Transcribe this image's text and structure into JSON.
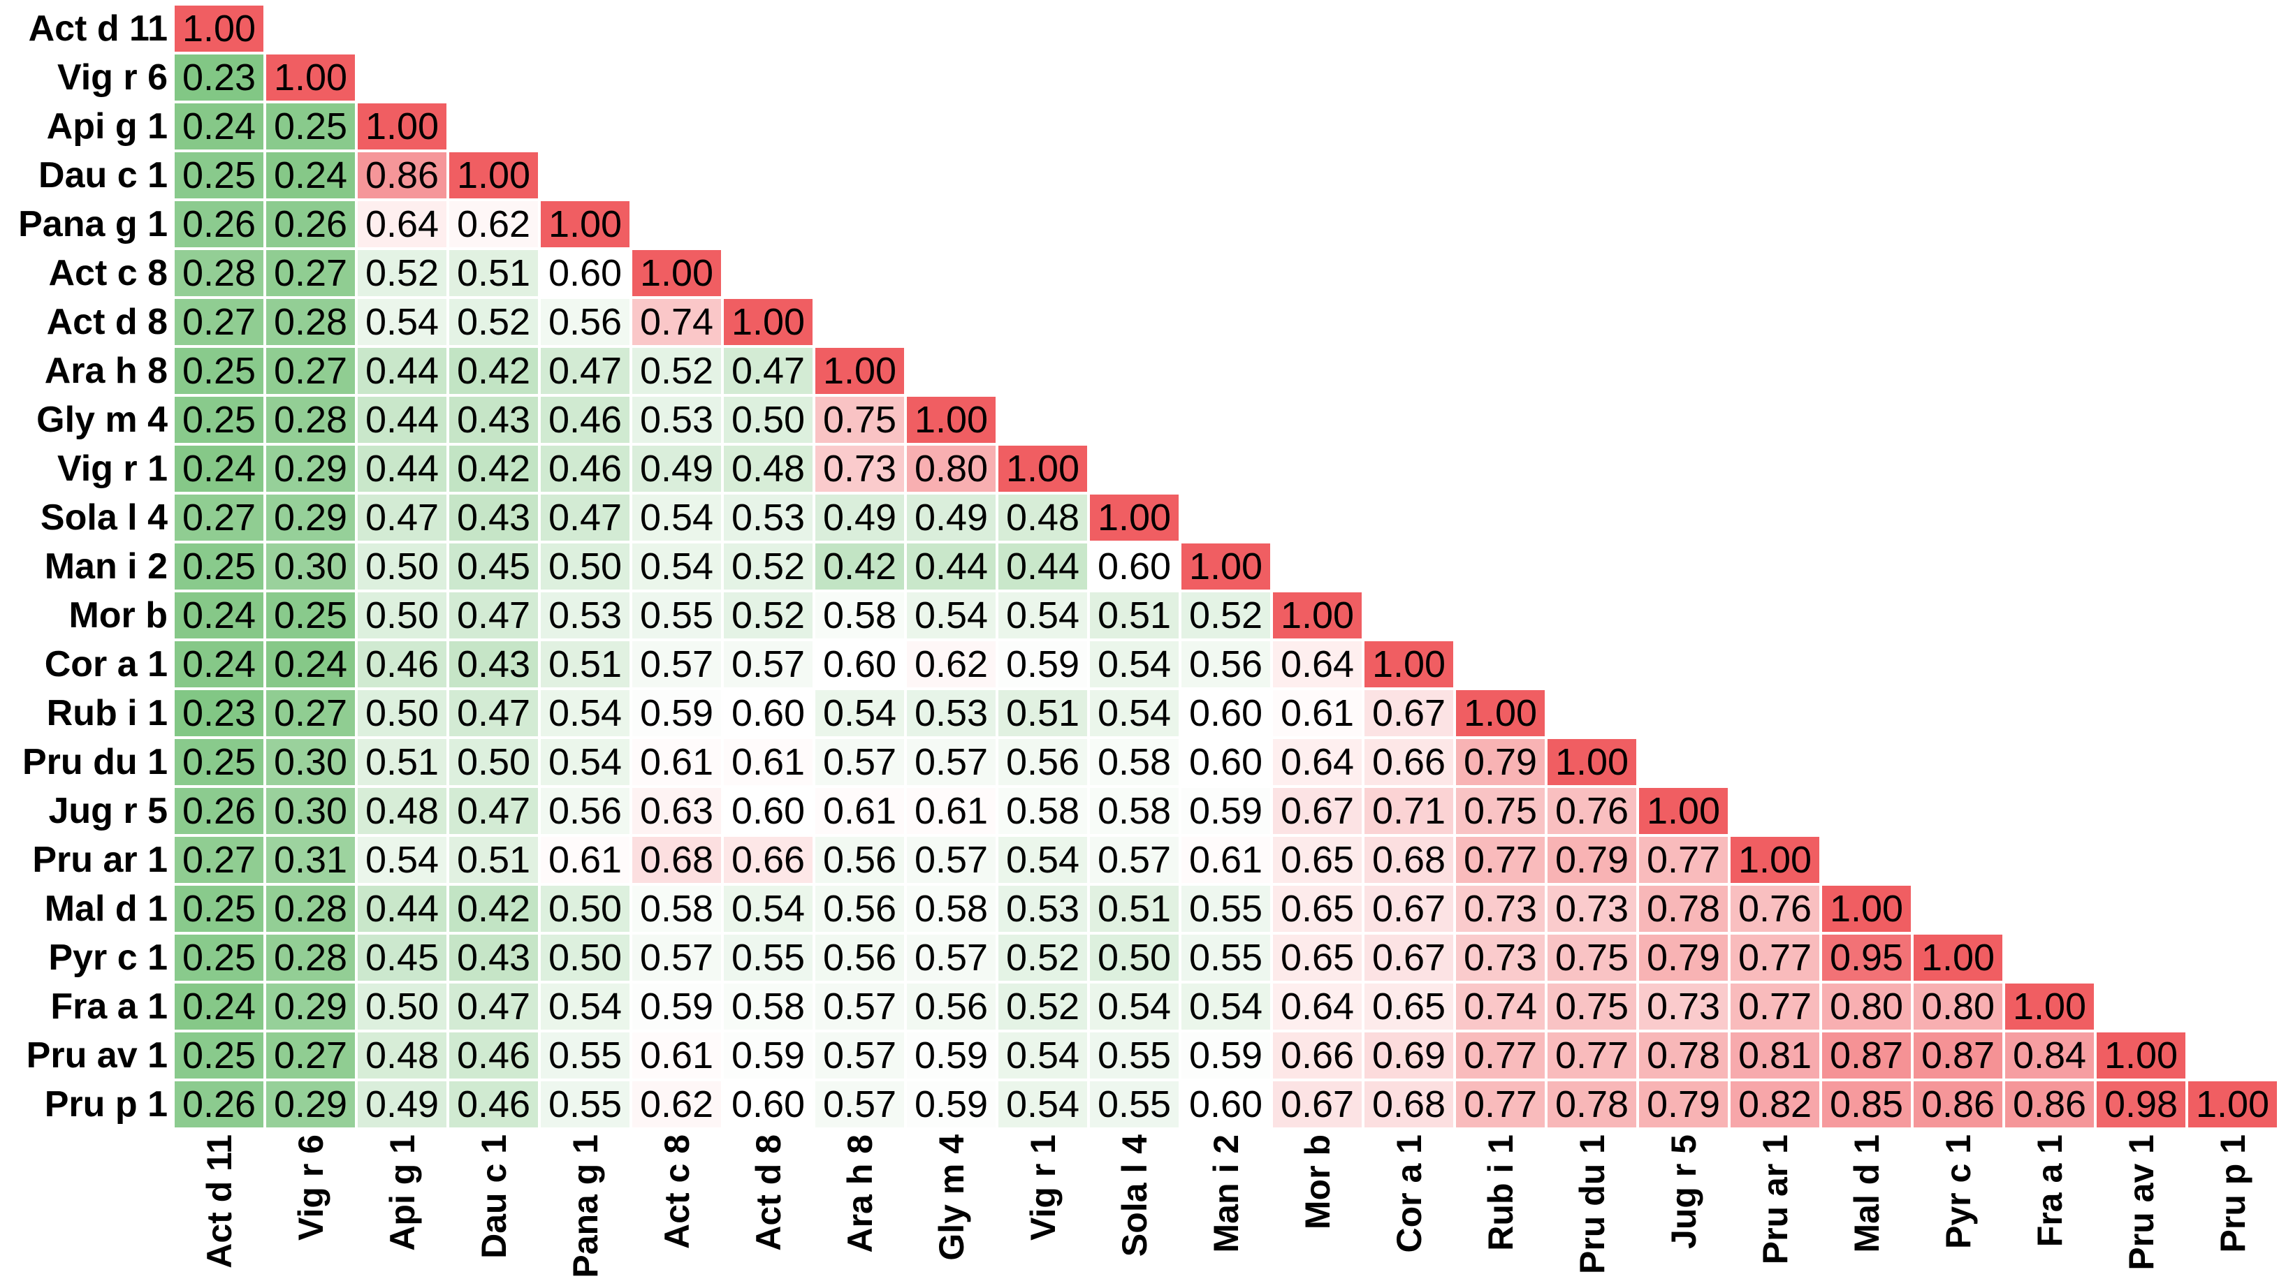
{
  "figure": {
    "background_color": "#ffffff",
    "text_color": "#000000"
  },
  "chart_data": {
    "type": "heatmap",
    "subtype": "lower-triangular-correlation-matrix",
    "title": "",
    "xlabel": "",
    "ylabel": "",
    "legend": "none",
    "grid_gap_color": "#ffffff",
    "cell_text_color": "#000000",
    "value_decimals": 2,
    "colormap": {
      "low_color": "#78c27b",
      "mid_color": "#ffffff",
      "high_color": "#f05e62",
      "low_value": 0.2,
      "mid_value": 0.6,
      "high_value": 1.0
    },
    "labels": [
      "Act d 11",
      "Vig r 6",
      "Api g 1",
      "Dau c 1",
      "Pana g 1",
      "Act c 8",
      "Act d 8",
      "Ara h 8",
      "Gly m 4",
      "Vig r 1",
      "Sola l 4",
      "Man i 2",
      "Mor b",
      "Cor a 1",
      "Rub i 1",
      "Pru du 1",
      "Jug r 5",
      "Pru ar 1",
      "Mal d 1",
      "Pyr c 1",
      "Fra a 1",
      "Pru av 1",
      "Pru p 1"
    ],
    "matrix": [
      [
        1.0
      ],
      [
        0.23,
        1.0
      ],
      [
        0.24,
        0.25,
        1.0
      ],
      [
        0.25,
        0.24,
        0.86,
        1.0
      ],
      [
        0.26,
        0.26,
        0.64,
        0.62,
        1.0
      ],
      [
        0.28,
        0.27,
        0.52,
        0.51,
        0.6,
        1.0
      ],
      [
        0.27,
        0.28,
        0.54,
        0.52,
        0.56,
        0.74,
        1.0
      ],
      [
        0.25,
        0.27,
        0.44,
        0.42,
        0.47,
        0.52,
        0.47,
        1.0
      ],
      [
        0.25,
        0.28,
        0.44,
        0.43,
        0.46,
        0.53,
        0.5,
        0.75,
        1.0
      ],
      [
        0.24,
        0.29,
        0.44,
        0.42,
        0.46,
        0.49,
        0.48,
        0.73,
        0.8,
        1.0
      ],
      [
        0.27,
        0.29,
        0.47,
        0.43,
        0.47,
        0.54,
        0.53,
        0.49,
        0.49,
        0.48,
        1.0
      ],
      [
        0.25,
        0.3,
        0.5,
        0.45,
        0.5,
        0.54,
        0.52,
        0.42,
        0.44,
        0.44,
        0.6,
        1.0
      ],
      [
        0.24,
        0.25,
        0.5,
        0.47,
        0.53,
        0.55,
        0.52,
        0.58,
        0.54,
        0.54,
        0.51,
        0.52,
        1.0
      ],
      [
        0.24,
        0.24,
        0.46,
        0.43,
        0.51,
        0.57,
        0.57,
        0.6,
        0.62,
        0.59,
        0.54,
        0.56,
        0.64,
        1.0
      ],
      [
        0.23,
        0.27,
        0.5,
        0.47,
        0.54,
        0.59,
        0.6,
        0.54,
        0.53,
        0.51,
        0.54,
        0.6,
        0.61,
        0.67,
        1.0
      ],
      [
        0.25,
        0.3,
        0.51,
        0.5,
        0.54,
        0.61,
        0.61,
        0.57,
        0.57,
        0.56,
        0.58,
        0.6,
        0.64,
        0.66,
        0.79,
        1.0
      ],
      [
        0.26,
        0.3,
        0.48,
        0.47,
        0.56,
        0.63,
        0.6,
        0.61,
        0.61,
        0.58,
        0.58,
        0.59,
        0.67,
        0.71,
        0.75,
        0.76,
        1.0
      ],
      [
        0.27,
        0.31,
        0.54,
        0.51,
        0.61,
        0.68,
        0.66,
        0.56,
        0.57,
        0.54,
        0.57,
        0.61,
        0.65,
        0.68,
        0.77,
        0.79,
        0.77,
        1.0
      ],
      [
        0.25,
        0.28,
        0.44,
        0.42,
        0.5,
        0.58,
        0.54,
        0.56,
        0.58,
        0.53,
        0.51,
        0.55,
        0.65,
        0.67,
        0.73,
        0.73,
        0.78,
        0.76,
        1.0
      ],
      [
        0.25,
        0.28,
        0.45,
        0.43,
        0.5,
        0.57,
        0.55,
        0.56,
        0.57,
        0.52,
        0.5,
        0.55,
        0.65,
        0.67,
        0.73,
        0.75,
        0.79,
        0.77,
        0.95,
        1.0
      ],
      [
        0.24,
        0.29,
        0.5,
        0.47,
        0.54,
        0.59,
        0.58,
        0.57,
        0.56,
        0.52,
        0.54,
        0.54,
        0.64,
        0.65,
        0.74,
        0.75,
        0.73,
        0.77,
        0.8,
        0.8,
        1.0
      ],
      [
        0.25,
        0.27,
        0.48,
        0.46,
        0.55,
        0.61,
        0.59,
        0.57,
        0.59,
        0.54,
        0.55,
        0.59,
        0.66,
        0.69,
        0.77,
        0.77,
        0.78,
        0.81,
        0.87,
        0.87,
        0.84,
        1.0
      ],
      [
        0.26,
        0.29,
        0.49,
        0.46,
        0.55,
        0.62,
        0.6,
        0.57,
        0.59,
        0.54,
        0.55,
        0.6,
        0.67,
        0.68,
        0.77,
        0.78,
        0.79,
        0.82,
        0.85,
        0.86,
        0.86,
        0.98,
        1.0
      ]
    ]
  }
}
